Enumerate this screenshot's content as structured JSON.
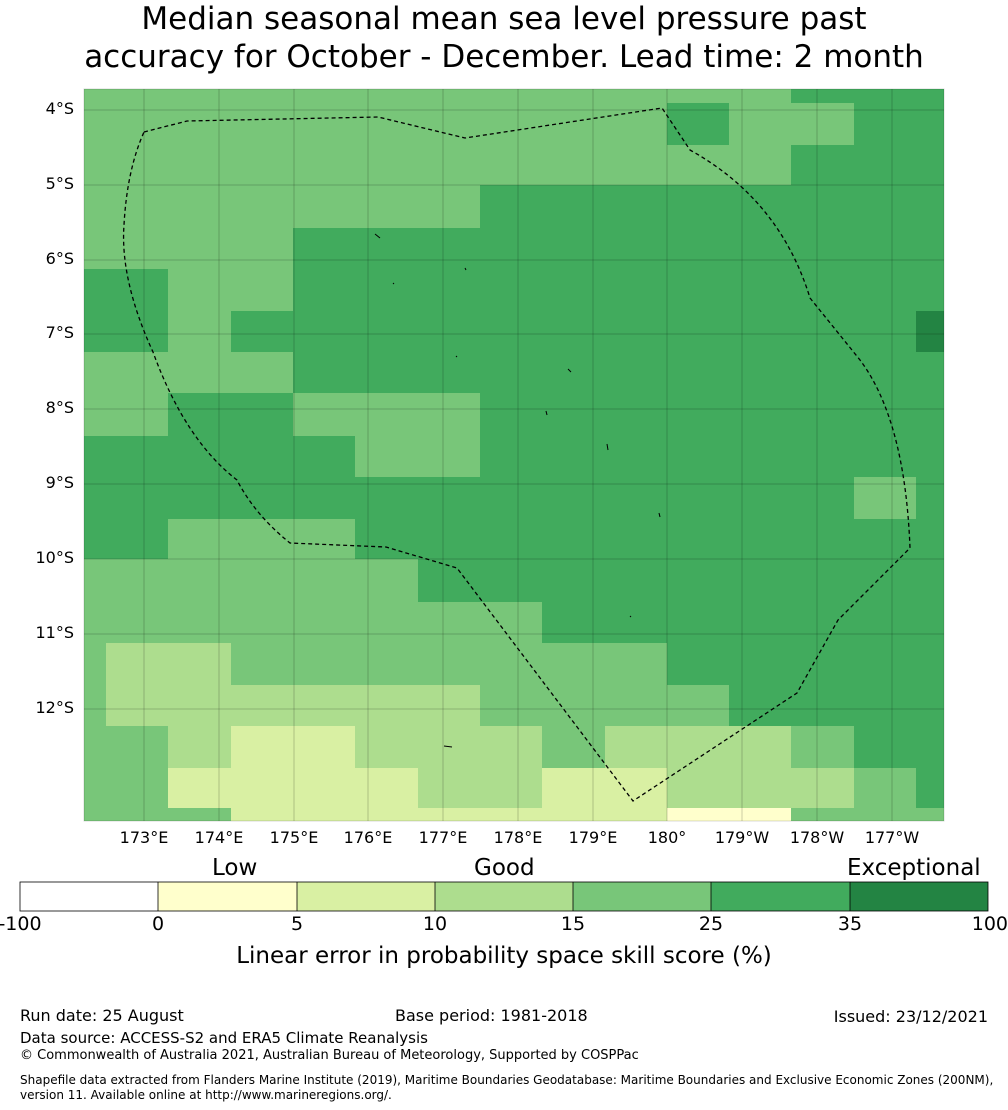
{
  "title": {
    "line1": "Median seasonal mean sea level pressure past",
    "line2": "accuracy for October - December. Lead time: 2 month"
  },
  "map": {
    "lat_labels": [
      "4°S",
      "5°S",
      "6°S",
      "7°S",
      "8°S",
      "9°S",
      "10°S",
      "11°S",
      "12°S"
    ],
    "lon_labels": [
      "173°E",
      "174°E",
      "175°E",
      "176°E",
      "177°E",
      "178°E",
      "179°E",
      "180°",
      "179°W",
      "178°W",
      "177°W"
    ],
    "eez_boundary": "dashed black",
    "grid": true
  },
  "colorbar": {
    "category_labels": [
      "Low",
      "Good",
      "Exceptional"
    ],
    "ticks": [
      "-100",
      "0",
      "5",
      "10",
      "15",
      "25",
      "35",
      "100"
    ],
    "colors": [
      "#ffffff",
      "#ffffcc",
      "#d9f0a3",
      "#addd8e",
      "#78c679",
      "#41ab5d",
      "#238443"
    ],
    "label": "Linear error in probability space skill score (%)"
  },
  "footer": {
    "run_date": "Run date: 25 August",
    "base_period": "Base period: 1981-2018",
    "issued": "Issued: 23/12/2021",
    "data_source": "Data source: ACCESS-S2 and ERA5 Climate Reanalysis",
    "copyright": "© Commonwealth of Australia 2021, Australian Bureau of Meteorology, Supported by COSPPac",
    "shapefile_line1": "Shapefile data extracted from Flanders Marine Institute (2019), Maritime Boundaries Geodatabase: Maritime Boundaries and Exclusive Economic Zones (200NM),",
    "shapefile_line2": "version 11. Available online at http://www.marineregions.org/."
  }
}
